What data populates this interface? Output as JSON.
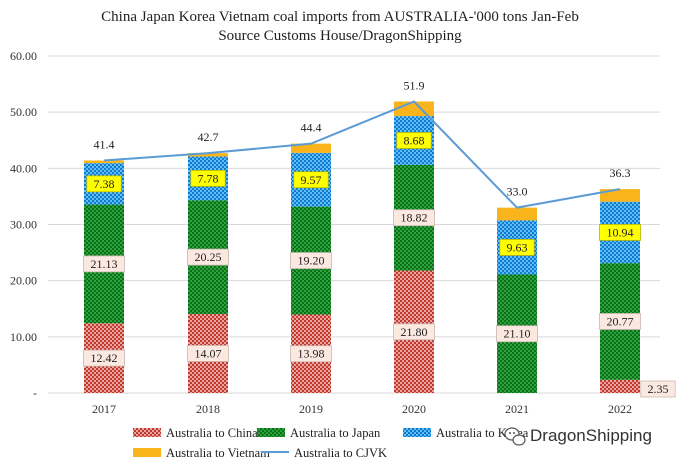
{
  "chart_data": {
    "type": "bar",
    "stacked": true,
    "title": "China Japan Korea Vietnam coal imports from AUSTRALIA-'000 tons Jan-Feb",
    "subtitle": "Source Customs House/DragonShipping",
    "categories": [
      "2017",
      "2018",
      "2019",
      "2020",
      "2021",
      "2022"
    ],
    "ylim": [
      0,
      60
    ],
    "yticks": [
      "-",
      "10.00",
      "20.00",
      "30.00",
      "40.00",
      "50.00",
      "60.00"
    ],
    "grid": true,
    "legend_position": "bottom",
    "series": [
      {
        "name": "Australia to China",
        "values": [
          12.42,
          14.07,
          13.98,
          21.8,
          0,
          2.35
        ],
        "labels": [
          "12.42",
          "14.07",
          "13.98",
          "21.80",
          "",
          "2.35"
        ],
        "color": "#cc4444",
        "pattern": "dots"
      },
      {
        "name": "Australia to Japan",
        "values": [
          21.13,
          20.25,
          19.2,
          18.82,
          21.1,
          20.77
        ],
        "labels": [
          "21.13",
          "20.25",
          "19.20",
          "18.82",
          "21.10",
          "20.77"
        ],
        "color": "#1a8a2a",
        "pattern": "dots"
      },
      {
        "name": "Australia to Korea",
        "values": [
          7.38,
          7.78,
          9.57,
          8.68,
          9.63,
          10.94
        ],
        "labels": [
          "7.38",
          "7.78",
          "9.57",
          "8.68",
          "9.63",
          "10.94"
        ],
        "color": "#1a8fe0",
        "pattern": "dots"
      },
      {
        "name": "Australia to Vietnam",
        "values": [
          0.47,
          0.6,
          1.65,
          2.6,
          2.27,
          2.24
        ],
        "labels": [
          "",
          "",
          "",
          "",
          "",
          ""
        ],
        "color": "#f8b41a",
        "pattern": "solid"
      }
    ],
    "line": {
      "name": "Australia to CJVK",
      "values": [
        41.4,
        42.7,
        44.4,
        51.9,
        33.0,
        36.3
      ],
      "labels": [
        "41.4",
        "42.7",
        "44.4",
        "51.9",
        "33.0",
        "36.3"
      ],
      "color": "#5b9bd5"
    }
  },
  "legend_entries": [
    "Australia to China",
    "Australia to Japan",
    "Australia to Korea",
    "Australia to Vietnam",
    "Australia to CJVK"
  ],
  "watermark": "DragonShipping"
}
